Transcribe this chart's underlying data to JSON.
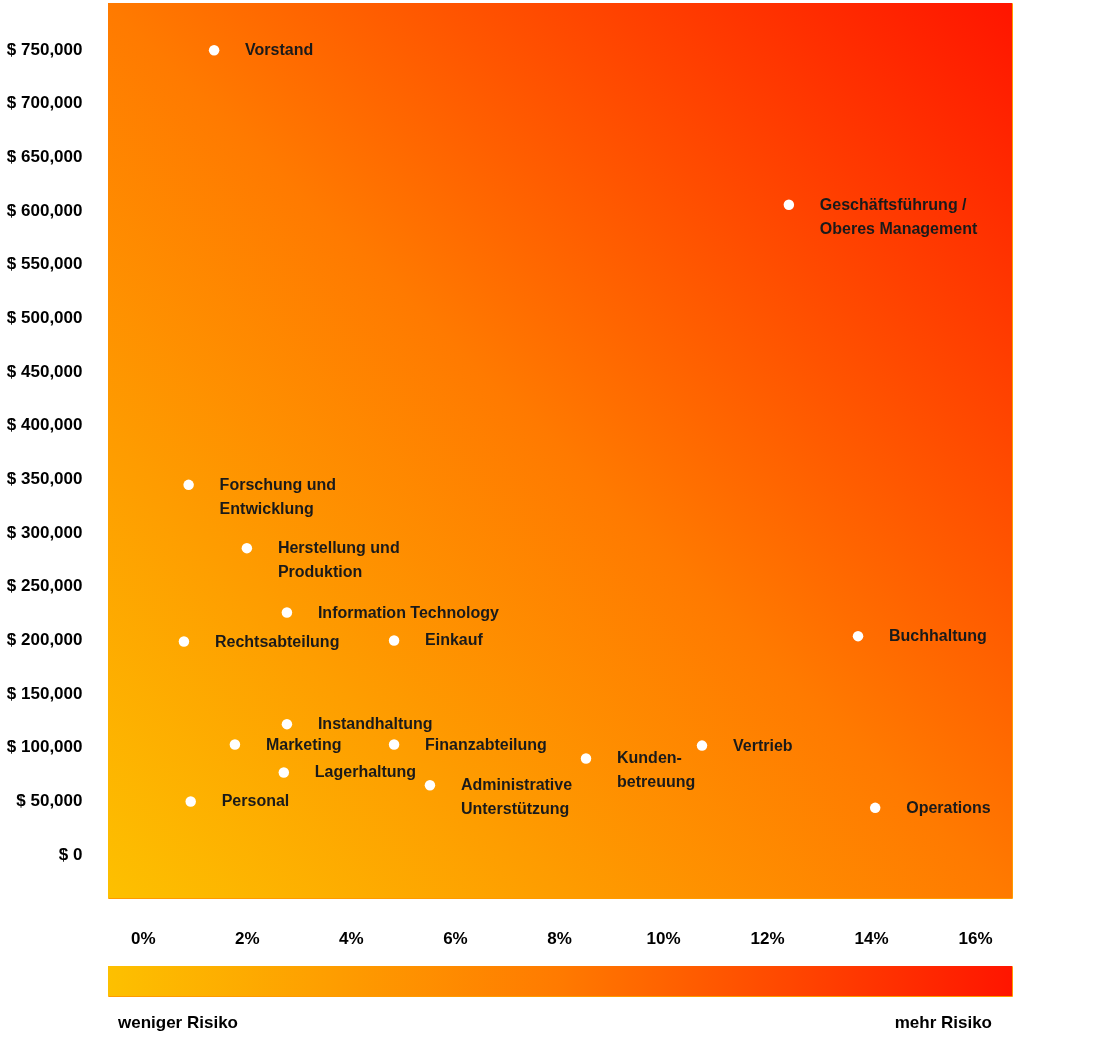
{
  "chart_data": {
    "type": "scatter",
    "series": [
      {
        "color": "#ffffff",
        "x": [
          1.37,
          12.42,
          0.88,
          2.0,
          2.77,
          0.79,
          4.83,
          13.75,
          2.77,
          1.77,
          4.83,
          8.52,
          10.75,
          2.71,
          5.52,
          0.92,
          14.08
        ],
        "values": [
          749000,
          605000,
          344000,
          285000,
          225000,
          198000,
          199000,
          203000,
          121000,
          102000,
          102000,
          89000,
          101000,
          76000,
          64000,
          49000,
          43000
        ]
      }
    ],
    "annotations": [
      {
        "text": "Vorstand",
        "x": 1.37,
        "y": 749000
      },
      {
        "text": "Geschäftsführung /\nOberes Management",
        "x": 12.42,
        "y": 605000
      },
      {
        "text": "Forschung und\nEntwicklung",
        "x": 0.88,
        "y": 344000
      },
      {
        "text": "Herstellung und\nProduktion",
        "x": 2.0,
        "y": 285000
      },
      {
        "text": "Information Technology",
        "x": 2.77,
        "y": 225000
      },
      {
        "text": "Rechtsabteilung",
        "x": 0.79,
        "y": 198000
      },
      {
        "text": "Einkauf",
        "x": 4.83,
        "y": 199000
      },
      {
        "text": "Buchhaltung",
        "x": 13.75,
        "y": 203000
      },
      {
        "text": "Instandhaltung",
        "x": 2.77,
        "y": 121000
      },
      {
        "text": "Marketing",
        "x": 1.77,
        "y": 102000
      },
      {
        "text": "Finanzabteilung",
        "x": 4.83,
        "y": 102000
      },
      {
        "text": "Kunden-\nbetreuung",
        "x": 8.52,
        "y": 89000
      },
      {
        "text": "Vertrieb",
        "x": 10.75,
        "y": 101000
      },
      {
        "text": "Lagerhaltung",
        "x": 2.71,
        "y": 76000
      },
      {
        "text": "Administrative\nUnterstützung",
        "x": 5.52,
        "y": 64000
      },
      {
        "text": "Personal",
        "x": 0.92,
        "y": 49000
      },
      {
        "text": "Operations",
        "x": 14.08,
        "y": 43000
      },
      "weniger Risiko",
      "mehr Risiko"
    ],
    "xlim": [
      -0.67,
      16.71
    ],
    "xticks": [
      {
        "value": 0,
        "label": "0%"
      },
      {
        "value": 2,
        "label": "2%"
      },
      {
        "value": 4,
        "label": "4%"
      },
      {
        "value": 6,
        "label": "6%"
      },
      {
        "value": 8,
        "label": "8%"
      },
      {
        "value": 10,
        "label": "10%"
      },
      {
        "value": 12,
        "label": "12%"
      },
      {
        "value": 14,
        "label": "14%"
      },
      {
        "value": 16,
        "label": "16%"
      }
    ],
    "ylim": [
      -41000,
      793000
    ],
    "yticks": [
      {
        "value": 0,
        "label": "$ 0"
      },
      {
        "value": 50000,
        "label": "$ 50,000"
      },
      {
        "value": 100000,
        "label": "$ 100,000"
      },
      {
        "value": 150000,
        "label": "$ 150,000"
      },
      {
        "value": 200000,
        "label": "$ 200,000"
      },
      {
        "value": 250000,
        "label": "$ 250,000"
      },
      {
        "value": 300000,
        "label": "$ 300,000"
      },
      {
        "value": 350000,
        "label": "$ 350,000"
      },
      {
        "value": 400000,
        "label": "$ 400,000"
      },
      {
        "value": 450000,
        "label": "$ 450,000"
      },
      {
        "value": 500000,
        "label": "$ 500,000"
      },
      {
        "value": 550000,
        "label": "$ 550,000"
      },
      {
        "value": 600000,
        "label": "$ 600,000"
      },
      {
        "value": 650000,
        "label": "$ 650,000"
      },
      {
        "value": 700000,
        "label": "$ 700,000"
      },
      {
        "value": 750000,
        "label": "$ 750,000"
      }
    ],
    "grid": false,
    "marker": "circle"
  }
}
